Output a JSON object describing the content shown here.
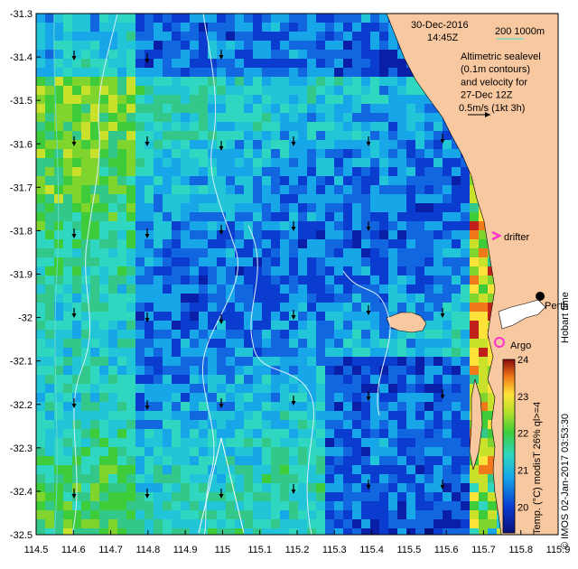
{
  "header": {
    "date": "30-Dec-2016",
    "time": "14:45Z",
    "depth_legend": "200  1000m",
    "description_lines": [
      "Altimetric sealevel",
      "(0.1m contours)",
      "and velocity for",
      "27-Dec 12Z",
      "0.5m/s (1kt 3h)"
    ]
  },
  "labels": {
    "drifter": "drifter",
    "argo": "Argo",
    "city": "Perth",
    "hobart_time": "Hobart time",
    "credit": "© IMOS 02-Jan-2017 03:53:30",
    "colorbar_title": "Temp. (°C) modisT 26% ql>=4"
  },
  "axes": {
    "x_ticks": [
      "114.5",
      "114.6",
      "114.7",
      "114.8",
      "114.9",
      "115",
      "115.1",
      "115.2",
      "115.3",
      "115.4",
      "115.5",
      "115.6",
      "115.7",
      "115.8",
      "115.9"
    ],
    "y_ticks": [
      "-31.3",
      "-31.4",
      "-31.5",
      "-31.6",
      "-31.7",
      "-31.8",
      "-31.9",
      "-32",
      "-32.1",
      "-32.2",
      "-32.3",
      "-32.4",
      "-32.5"
    ],
    "lon_range": [
      114.5,
      115.9
    ],
    "lat_range": [
      -32.5,
      -31.3
    ]
  },
  "colorbar": {
    "ticks": [
      "24",
      "23",
      "22",
      "21",
      "20"
    ],
    "range": [
      19.3,
      24
    ]
  },
  "colors": {
    "land": "#f8c8a0",
    "drifter": "#ff33cc",
    "argo": "#ff33cc",
    "contour": "#d8f0ff",
    "depth_200": "#66d9cc"
  }
}
